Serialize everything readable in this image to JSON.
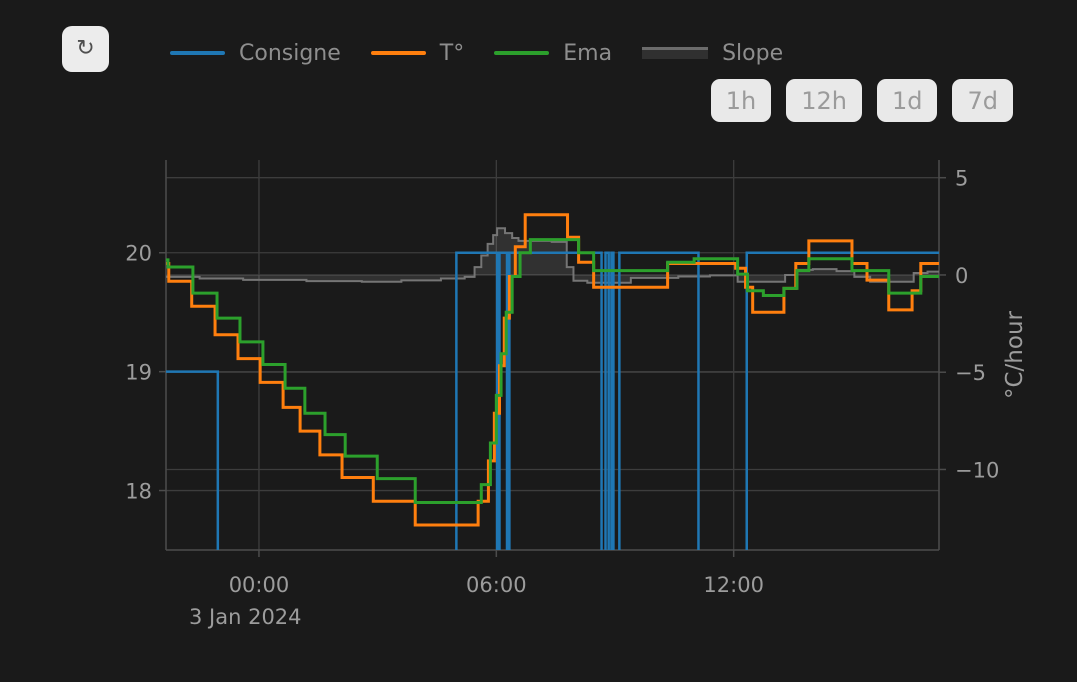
{
  "header": {
    "refresh_icon": "↻",
    "legend": {
      "items": [
        {
          "label": "Consigne",
          "color": "#1f77b4",
          "swatch": "line"
        },
        {
          "label": "T°",
          "color": "#ff7f0e",
          "swatch": "line"
        },
        {
          "label": "Ema",
          "color": "#2ca02c",
          "swatch": "line"
        },
        {
          "label": "Slope",
          "color": "#6b6b6b",
          "swatch": "area"
        }
      ]
    },
    "range_buttons": [
      {
        "label": "1h"
      },
      {
        "label": "12h"
      },
      {
        "label": "1d"
      },
      {
        "label": "7d"
      }
    ]
  },
  "colors": {
    "background": "#1a1a1a",
    "grid": "#3d3d3d",
    "axis_line": "#4c4c4c",
    "tick_label": "#9c9c9c",
    "slope_line": "#757575",
    "slope_fill": "rgba(210,210,210,0.13)"
  },
  "chart_data": {
    "type": "line",
    "title": "",
    "x_unit": "hours relative to 3 Jan 2024 00:00",
    "x_range": [
      -2.35,
      17.19
    ],
    "x_end": 17.19,
    "x_ticks": [
      {
        "v": 0,
        "label": "00:00"
      },
      {
        "v": 6,
        "label": "06:00"
      },
      {
        "v": 12,
        "label": "12:00"
      }
    ],
    "x_date_label": "3 Jan 2024",
    "y_left": {
      "label": "",
      "range": [
        17.5,
        20.78
      ],
      "ticks": [
        {
          "v": 20,
          "label": "20"
        },
        {
          "v": 19,
          "label": "19"
        },
        {
          "v": 18,
          "label": "18"
        }
      ]
    },
    "y_right": {
      "label": "°C/hour",
      "range": [
        -14.14,
        5.91
      ],
      "ticks": [
        {
          "v": 5,
          "label": "5"
        },
        {
          "v": 0,
          "label": "0"
        },
        {
          "v": -5,
          "label": "−5"
        },
        {
          "v": -10,
          "label": "−10"
        }
      ]
    },
    "legend_position": "top-center",
    "grid": true,
    "series": [
      {
        "name": "Slope",
        "axis": "right",
        "mode": "step",
        "fill_to_zero": true,
        "color": "#757575",
        "width": 2,
        "points": [
          [
            -2.35,
            -0.1
          ],
          [
            -1.5,
            -0.18
          ],
          [
            -0.4,
            -0.25
          ],
          [
            1.2,
            -0.32
          ],
          [
            2.6,
            -0.35
          ],
          [
            3.6,
            -0.28
          ],
          [
            4.6,
            -0.18
          ],
          [
            5.2,
            -0.1
          ],
          [
            5.45,
            0.4
          ],
          [
            5.62,
            1.0
          ],
          [
            5.78,
            1.6
          ],
          [
            5.92,
            2.05
          ],
          [
            6.02,
            2.4
          ],
          [
            6.22,
            2.15
          ],
          [
            6.4,
            1.9
          ],
          [
            6.56,
            1.75
          ],
          [
            7.4,
            1.7
          ],
          [
            7.78,
            0.4
          ],
          [
            7.95,
            -0.3
          ],
          [
            8.3,
            -0.4
          ],
          [
            9.4,
            -0.15
          ],
          [
            10.6,
            -0.08
          ],
          [
            11.4,
            -0.02
          ],
          [
            12.1,
            -0.35
          ],
          [
            13.3,
            0.0
          ],
          [
            13.6,
            0.26
          ],
          [
            14.0,
            0.3
          ],
          [
            14.6,
            0.2
          ],
          [
            15.05,
            -0.1
          ],
          [
            15.45,
            -0.35
          ],
          [
            16.55,
            0.1
          ],
          [
            16.9,
            0.17
          ]
        ]
      },
      {
        "name": "Consigne",
        "axis": "left",
        "mode": "step",
        "fill_to_zero": false,
        "color": "#1f77b4",
        "width": 2.5,
        "points": [
          [
            -2.35,
            19
          ],
          [
            -1.04,
            17
          ],
          [
            4.99,
            20
          ],
          [
            6.02,
            17
          ],
          [
            6.08,
            20
          ],
          [
            6.27,
            17
          ],
          [
            6.33,
            20
          ],
          [
            8.66,
            17
          ],
          [
            8.76,
            20
          ],
          [
            8.84,
            17
          ],
          [
            8.91,
            20
          ],
          [
            8.96,
            17
          ],
          [
            9.11,
            20
          ],
          [
            11.11,
            17
          ],
          [
            12.33,
            20
          ]
        ]
      },
      {
        "name": "T°",
        "axis": "left",
        "mode": "step",
        "fill_to_zero": false,
        "color": "#ff7f0e",
        "width": 3,
        "points": [
          [
            -2.35,
            19.91
          ],
          [
            -2.28,
            19.76
          ],
          [
            -1.7,
            19.55
          ],
          [
            -1.11,
            19.31
          ],
          [
            -0.53,
            19.11
          ],
          [
            0.03,
            18.91
          ],
          [
            0.61,
            18.7
          ],
          [
            1.04,
            18.5
          ],
          [
            1.54,
            18.3
          ],
          [
            2.1,
            18.11
          ],
          [
            2.89,
            17.91
          ],
          [
            3.95,
            17.71
          ],
          [
            5.54,
            17.91
          ],
          [
            5.8,
            18.25
          ],
          [
            5.95,
            18.65
          ],
          [
            6.08,
            19.05
          ],
          [
            6.2,
            19.45
          ],
          [
            6.33,
            19.8
          ],
          [
            6.48,
            20.05
          ],
          [
            6.73,
            20.32
          ],
          [
            7.8,
            20.13
          ],
          [
            8.08,
            19.92
          ],
          [
            8.46,
            19.71
          ],
          [
            10.33,
            19.91
          ],
          [
            12.05,
            19.87
          ],
          [
            12.3,
            19.71
          ],
          [
            12.48,
            19.5
          ],
          [
            13.27,
            19.7
          ],
          [
            13.57,
            19.91
          ],
          [
            13.9,
            20.1
          ],
          [
            14.99,
            19.91
          ],
          [
            15.37,
            19.77
          ],
          [
            15.92,
            19.52
          ],
          [
            16.51,
            19.68
          ],
          [
            16.73,
            19.91
          ]
        ]
      },
      {
        "name": "Ema",
        "axis": "left",
        "mode": "step",
        "fill_to_zero": false,
        "color": "#2ca02c",
        "width": 3,
        "points": [
          [
            -2.35,
            19.94
          ],
          [
            -2.3,
            19.88
          ],
          [
            -1.67,
            19.66
          ],
          [
            -1.06,
            19.45
          ],
          [
            -0.48,
            19.25
          ],
          [
            0.1,
            19.06
          ],
          [
            0.66,
            18.86
          ],
          [
            1.16,
            18.65
          ],
          [
            1.67,
            18.47
          ],
          [
            2.18,
            18.29
          ],
          [
            2.99,
            18.1
          ],
          [
            3.95,
            17.9
          ],
          [
            5.62,
            18.05
          ],
          [
            5.85,
            18.4
          ],
          [
            6.0,
            18.8
          ],
          [
            6.12,
            19.15
          ],
          [
            6.25,
            19.5
          ],
          [
            6.4,
            19.8
          ],
          [
            6.6,
            20.0
          ],
          [
            6.86,
            20.11
          ],
          [
            8.08,
            20.0
          ],
          [
            8.46,
            19.85
          ],
          [
            10.33,
            19.92
          ],
          [
            11.0,
            19.95
          ],
          [
            12.1,
            19.82
          ],
          [
            12.35,
            19.68
          ],
          [
            12.75,
            19.64
          ],
          [
            13.27,
            19.7
          ],
          [
            13.6,
            19.85
          ],
          [
            13.9,
            19.95
          ],
          [
            14.99,
            19.85
          ],
          [
            15.92,
            19.66
          ],
          [
            16.73,
            19.8
          ]
        ]
      }
    ]
  }
}
